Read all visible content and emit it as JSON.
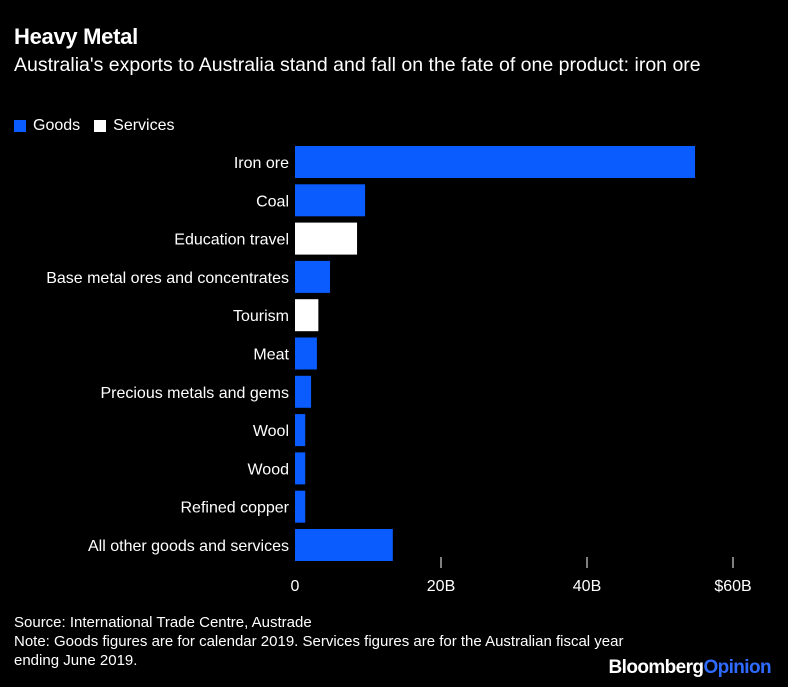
{
  "header": {
    "title": "Heavy Metal",
    "subtitle": "Australia's exports to Australia stand and fall on the fate of one product: iron ore"
  },
  "legend": [
    {
      "label": "Goods",
      "color": "#0a5cff"
    },
    {
      "label": "Services",
      "color": "#ffffff"
    }
  ],
  "chart_data": {
    "type": "bar",
    "orientation": "horizontal",
    "title": "Heavy Metal",
    "subtitle": "Australia's exports to Australia stand and fall on the fate of one product: iron ore",
    "categories": [
      "Iron ore",
      "Coal",
      "Education travel",
      "Base metal ores and concentrates",
      "Tourism",
      "Meat",
      "Precious metals and gems",
      "Wool",
      "Wood",
      "Refined copper",
      "All other goods and services"
    ],
    "values": [
      54.8,
      9.6,
      8.5,
      4.8,
      3.2,
      3.0,
      2.2,
      1.4,
      1.4,
      1.4,
      13.4
    ],
    "series_type": [
      "Goods",
      "Goods",
      "Services",
      "Goods",
      "Services",
      "Goods",
      "Goods",
      "Goods",
      "Goods",
      "Goods",
      "Goods"
    ],
    "series_colors": {
      "Goods": "#0a5cff",
      "Services": "#ffffff"
    },
    "xlim": [
      0,
      60
    ],
    "xticks": [
      0,
      20,
      40,
      60
    ],
    "xtick_labels": [
      "0",
      "20B",
      "40B",
      "$60B"
    ],
    "xlabel": "",
    "ylabel": "",
    "grid": false,
    "legend_position": "top-left"
  },
  "footer": {
    "source": "Source: International Trade Centre, Austrade",
    "note": "Note: Goods figures are for calendar 2019. Services figures are for the Australian fiscal year ending June 2019.",
    "brand_part1": "Bloomberg",
    "brand_part2": "Opinion"
  }
}
